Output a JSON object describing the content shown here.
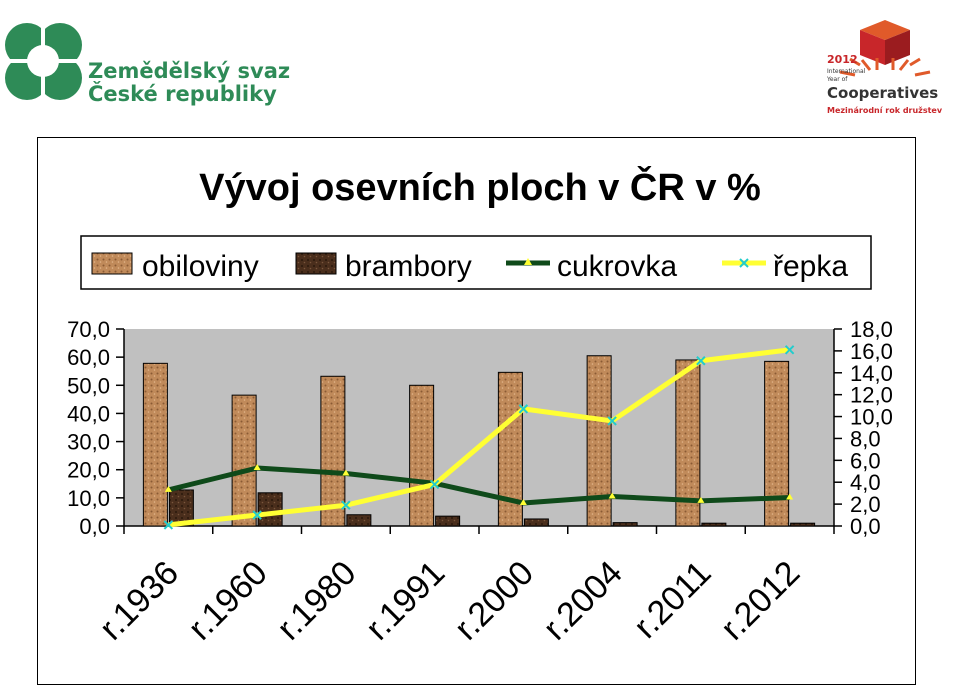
{
  "logos": {
    "left_line1": "Zemědělský svaz",
    "left_line2": "České republiky",
    "right_year": "2012",
    "right_small1": "International",
    "right_small2": "Year of",
    "right_main": "Cooperatives",
    "right_sub": "Mezinárodní rok družstev"
  },
  "colors": {
    "obiloviny": "#c08a5a",
    "brambory": "#4a2e1c",
    "cukrovka": "#0f4a1a",
    "repka": "#ffff33",
    "plot_bg": "#c0c0c0",
    "logo_green": "#2e8b57",
    "logo_red": "#c8262a"
  },
  "chart_data": {
    "type": "bar",
    "title": "Vývoj osevních ploch v ČR v %",
    "categories": [
      "r.1936",
      "r.1960",
      "r.1980",
      "r.1991",
      "r.2000",
      "r.2004",
      "r.2011",
      "r.2012"
    ],
    "series": [
      {
        "name": "obiloviny",
        "kind": "bar",
        "axis": "left",
        "values": [
          57.8,
          46.5,
          53.2,
          50.0,
          54.6,
          60.5,
          59.0,
          58.5
        ]
      },
      {
        "name": "brambory",
        "kind": "bar",
        "axis": "left",
        "values": [
          12.8,
          11.8,
          4.0,
          3.5,
          2.5,
          1.2,
          1.0,
          1.0
        ]
      },
      {
        "name": "cukrovka",
        "kind": "line",
        "axis": "right",
        "values": [
          3.3,
          5.3,
          4.8,
          3.9,
          2.1,
          2.7,
          2.3,
          2.6
        ]
      },
      {
        "name": "řepka",
        "kind": "line",
        "axis": "right",
        "values": [
          0.1,
          1.0,
          1.9,
          3.8,
          10.7,
          9.6,
          15.1,
          16.1
        ]
      }
    ],
    "yleft": {
      "min": 0,
      "max": 70,
      "step": 10,
      "ticks": [
        "0,0",
        "10,0",
        "20,0",
        "30,0",
        "40,0",
        "50,0",
        "60,0",
        "70,0"
      ]
    },
    "yright": {
      "min": 0,
      "max": 18,
      "step": 2,
      "ticks": [
        "0,0",
        "2,0",
        "4,0",
        "6,0",
        "8,0",
        "10,0",
        "12,0",
        "14,0",
        "16,0",
        "18,0"
      ]
    },
    "legend_position": "top",
    "grid": false
  }
}
